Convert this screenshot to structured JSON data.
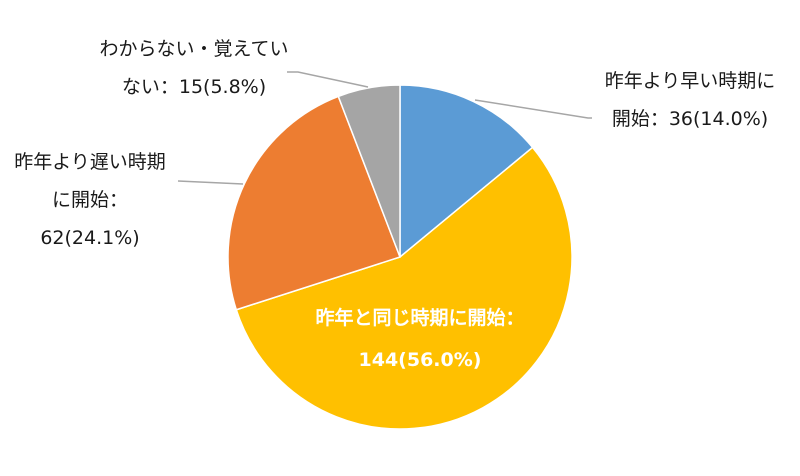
{
  "chart_data": {
    "type": "pie",
    "title": "",
    "start_angle_deg": 0,
    "direction": "clockwise",
    "slices": [
      {
        "label": "昨年より早い時期に開始",
        "value": 36,
        "percent": 14.0,
        "color": "#5B9BD5"
      },
      {
        "label": "昨年と同じ時期に開始",
        "value": 144,
        "percent": 56.0,
        "color": "#FFC000"
      },
      {
        "label": "昨年より遅い時期に開始",
        "value": 62,
        "percent": 24.1,
        "color": "#ED7D31"
      },
      {
        "label": "わからない・覚えていない",
        "value": 15,
        "percent": 5.8,
        "color": "#A5A5A5"
      }
    ],
    "legend": "none",
    "data_labels": "category : value(percent)"
  },
  "labels": {
    "early": {
      "line1": "昨年より早い時期に",
      "line2": "開始：36(14.0%)"
    },
    "same": {
      "line1": "昨年と同じ時期に開始：",
      "line2": "144(56.0%)"
    },
    "late": {
      "line1": "昨年より遅い時期",
      "line2": "に開始：",
      "line3": "62(24.1%)"
    },
    "unknown": {
      "line1": "わからない・覚えてい",
      "line2": "ない：15(5.8%)"
    }
  }
}
